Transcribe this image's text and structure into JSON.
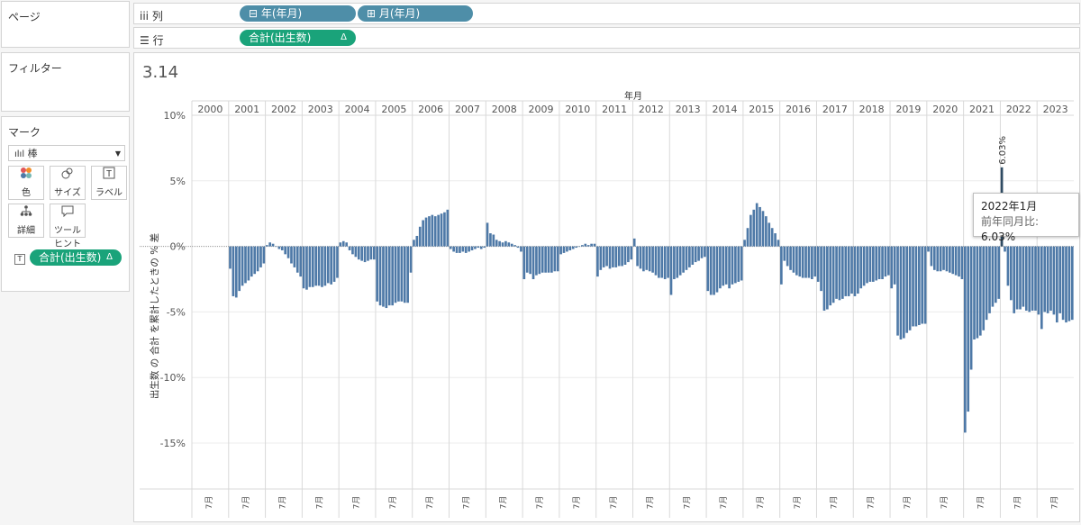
{
  "left": {
    "pages_title": "ページ",
    "filters_title": "フィルター",
    "marks_title": "マーク",
    "mark_type": "棒",
    "buttons": [
      {
        "label": "色",
        "icon": "color-dots-icon"
      },
      {
        "label": "サイズ",
        "icon": "size-icon"
      },
      {
        "label": "ラベル",
        "icon": "label-icon"
      },
      {
        "label": "詳細",
        "icon": "detail-icon"
      },
      {
        "label": "ツールヒント",
        "icon": "tooltip-icon"
      }
    ],
    "label_pill": "合計(出生数)",
    "label_pill_delta": "Δ"
  },
  "shelves": {
    "columns_label": "列",
    "rows_label": "行",
    "col_pills": [
      "⊟ 年(年月)",
      "⊞ 月(年月)"
    ],
    "row_pill": "合計(出生数)",
    "row_pill_delta": "Δ"
  },
  "colors": {
    "bar": "#4e79a7",
    "highlight_bar": "#2f4b63",
    "pill_blue": "#4e8ea8",
    "pill_green": "#1aa37a"
  },
  "chart_data": {
    "type": "bar",
    "title": "3.14",
    "header_label": "年月",
    "ylabel": "出生数 の 合計 を累計したときの % 差",
    "ylim": [
      -18.5,
      10
    ],
    "yticks": [
      10,
      5,
      0,
      -5,
      -10,
      -15
    ],
    "ytick_labels": [
      "10%",
      "5%",
      "0%",
      "-5%",
      "-10%",
      "-15%"
    ],
    "years": [
      "2000",
      "2001",
      "2002",
      "2003",
      "2004",
      "2005",
      "2006",
      "2007",
      "2008",
      "2009",
      "2010",
      "2011",
      "2012",
      "2013",
      "2014",
      "2015",
      "2016",
      "2017",
      "2018",
      "2019",
      "2020",
      "2021",
      "2022",
      "2023"
    ],
    "month_axis_label": "7月",
    "annotation": {
      "year": "2022",
      "month": 1,
      "text": "6.03%"
    },
    "values": [
      [
        null,
        null,
        null,
        null,
        null,
        null,
        null,
        null,
        null,
        null,
        null,
        null
      ],
      [
        -1.7,
        -3.8,
        -3.9,
        -3.4,
        -3.0,
        -2.8,
        -2.6,
        -2.3,
        -2.1,
        -1.9,
        -1.6,
        -1.3
      ],
      [
        0.1,
        0.3,
        0.2,
        0.0,
        -0.2,
        -0.3,
        -0.6,
        -0.9,
        -1.3,
        -1.6,
        -2.0,
        -2.3
      ],
      [
        -3.2,
        -3.3,
        -3.1,
        -3.1,
        -3.0,
        -3.0,
        -3.1,
        -3.0,
        -2.8,
        -2.9,
        -2.7,
        -2.4
      ],
      [
        0.3,
        0.4,
        0.3,
        -0.3,
        -0.6,
        -0.8,
        -1.0,
        -1.1,
        -1.2,
        -1.1,
        -1.0,
        -1.0
      ],
      [
        -4.2,
        -4.5,
        -4.6,
        -4.7,
        -4.5,
        -4.5,
        -4.3,
        -4.2,
        -4.2,
        -4.3,
        -4.3,
        -2.0
      ],
      [
        0.5,
        0.8,
        1.5,
        2.0,
        2.2,
        2.3,
        2.4,
        2.3,
        2.4,
        2.5,
        2.6,
        2.8
      ],
      [
        -0.2,
        -0.4,
        -0.5,
        -0.5,
        -0.4,
        -0.5,
        -0.4,
        -0.3,
        -0.2,
        -0.1,
        -0.2,
        -0.1
      ],
      [
        1.8,
        1.0,
        0.9,
        0.5,
        0.4,
        0.3,
        0.4,
        0.3,
        0.2,
        0.1,
        -0.1,
        -0.4
      ],
      [
        -2.5,
        -2.0,
        -2.1,
        -2.5,
        -2.2,
        -2.1,
        -2.0,
        -2.0,
        -2.0,
        -2.0,
        -1.9,
        -1.9
      ],
      [
        -0.6,
        -0.5,
        -0.4,
        -0.3,
        -0.2,
        -0.1,
        0.0,
        0.1,
        0.2,
        0.1,
        0.2,
        0.2
      ],
      [
        -2.3,
        -1.8,
        -1.6,
        -1.5,
        -1.7,
        -1.6,
        -1.6,
        -1.5,
        -1.5,
        -1.4,
        -1.2,
        -1.0
      ],
      [
        0.6,
        -1.5,
        -1.7,
        -1.9,
        -1.8,
        -1.9,
        -2.0,
        -2.2,
        -2.4,
        -2.4,
        -2.5,
        -2.4
      ],
      [
        -3.7,
        -2.5,
        -2.4,
        -2.2,
        -2.0,
        -1.8,
        -1.6,
        -1.4,
        -1.2,
        -1.1,
        -0.9,
        -0.8
      ],
      [
        -3.4,
        -3.7,
        -3.7,
        -3.5,
        -3.2,
        -3.0,
        -2.9,
        -3.2,
        -2.9,
        -2.8,
        -2.7,
        -2.6
      ],
      [
        0.5,
        1.4,
        2.4,
        2.8,
        3.3,
        3.0,
        2.7,
        2.3,
        1.8,
        1.4,
        1.0,
        0.5
      ],
      [
        -2.9,
        -1.1,
        -1.5,
        -1.8,
        -2.0,
        -2.2,
        -2.3,
        -2.4,
        -2.4,
        -2.4,
        -2.5,
        -2.3
      ],
      [
        -2.7,
        -3.4,
        -4.9,
        -4.8,
        -4.5,
        -4.3,
        -4.0,
        -4.1,
        -4.0,
        -3.8,
        -3.8,
        -3.6
      ],
      [
        -3.8,
        -3.6,
        -3.2,
        -3.0,
        -2.8,
        -2.7,
        -2.7,
        -2.6,
        -2.5,
        -2.5,
        -2.3,
        -2.2
      ],
      [
        -3.2,
        -2.9,
        -6.8,
        -7.1,
        -7.0,
        -6.6,
        -6.4,
        -6.1,
        -6.1,
        -6.0,
        -5.9,
        -5.9
      ],
      [
        -0.4,
        -1.5,
        -1.8,
        -1.9,
        -1.9,
        -1.8,
        -1.9,
        -2.0,
        -2.1,
        -2.2,
        -2.3,
        -2.5
      ],
      [
        -14.2,
        -12.6,
        -9.4,
        -7.1,
        -7.0,
        -6.8,
        -6.4,
        -5.6,
        -5.1,
        -4.6,
        -4.3,
        -4.0
      ],
      [
        6.03,
        -0.4,
        -3.0,
        -4.1,
        -5.1,
        -4.8,
        -4.8,
        -4.6,
        -4.9,
        -5.0,
        -4.9,
        -4.9
      ],
      [
        -5.2,
        -6.3,
        -5.0,
        -5.1,
        -4.9,
        -5.2,
        -5.8,
        -5.1,
        -5.6,
        -5.8,
        -5.7,
        -5.6
      ]
    ]
  },
  "tooltip": {
    "date_year": "2022",
    "date_year_suffix": "年",
    "date_month": "1月",
    "label": "前年同月比:",
    "value": "6.03%"
  }
}
